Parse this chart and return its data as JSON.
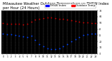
{
  "title": "Milwaukee Weather Outdoor Temperature vs THSW Index per Hour (24 Hours)",
  "bg_color": "#ffffff",
  "plot_bg_color": "#000000",
  "legend_blue_label": "THSW Index",
  "legend_red_label": "Outdoor Temp",
  "legend_blue_color": "#0000ff",
  "legend_red_color": "#ff0000",
  "x_hours": [
    0,
    1,
    2,
    3,
    4,
    5,
    6,
    7,
    8,
    9,
    10,
    11,
    12,
    13,
    14,
    15,
    16,
    17,
    18,
    19,
    20,
    21,
    22,
    23
  ],
  "temp_x": [
    0,
    1,
    2,
    3,
    4,
    5,
    6,
    7,
    8,
    9,
    10,
    11,
    12,
    13,
    14,
    15,
    16,
    17,
    18,
    19,
    20,
    21,
    22,
    23
  ],
  "temp_y": [
    50,
    49,
    49,
    48,
    48,
    47,
    48,
    52,
    55,
    57,
    58,
    59,
    59,
    58,
    57,
    56,
    55,
    54,
    53,
    52,
    51,
    51,
    50,
    50
  ],
  "thsw_x": [
    0,
    1,
    2,
    3,
    4,
    5,
    6,
    7,
    8,
    9,
    10,
    11,
    12,
    13,
    14,
    15,
    16,
    17,
    18,
    19,
    20,
    21,
    22,
    23
  ],
  "thsw_y": [
    33,
    32,
    31,
    30,
    29,
    28,
    27,
    29,
    22,
    16,
    12,
    9,
    8,
    8,
    9,
    12,
    16,
    20,
    24,
    27,
    30,
    32,
    33,
    33
  ],
  "ylim_min": 0,
  "ylim_max": 70,
  "yticks": [
    0,
    10,
    20,
    30,
    40,
    50,
    60,
    70
  ],
  "grid_color": "#666666",
  "tick_color": "#ffffff",
  "text_color": "#000000",
  "title_fontsize": 3.8,
  "marker_size": 1.8,
  "temp_color": "#cc0000",
  "thsw_color": "#0044ff"
}
